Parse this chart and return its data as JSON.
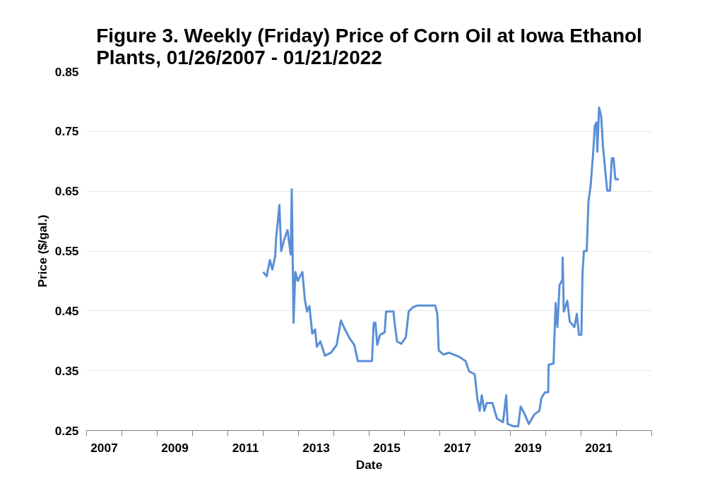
{
  "chart_data": {
    "type": "line",
    "title": "Figure 3. Weekly (Friday) Price of Corn Oil at Iowa Ethanol Plants, 01/26/2007 - 01/21/2022",
    "xlabel": "Date",
    "ylabel": "Price ($/gal.)",
    "x": [
      2012.0,
      2012.1,
      2012.19,
      2012.26,
      2012.34,
      2012.37,
      2012.41,
      2012.46,
      2012.51,
      2012.59,
      2012.69,
      2012.78,
      2012.81,
      2012.86,
      2012.91,
      2012.98,
      2013.11,
      2013.18,
      2013.24,
      2013.31,
      2013.39,
      2013.47,
      2013.52,
      2013.62,
      2013.75,
      2013.92,
      2014.08,
      2014.2,
      2014.3,
      2014.45,
      2014.58,
      2014.68,
      2014.98,
      2015.08,
      2015.13,
      2015.18,
      2015.23,
      2015.31,
      2015.44,
      2015.48,
      2015.69,
      2015.72,
      2015.79,
      2015.91,
      2016.04,
      2016.12,
      2016.24,
      2016.37,
      2016.64,
      2016.87,
      2016.93,
      2016.97,
      2017.1,
      2017.26,
      2017.56,
      2017.73,
      2017.83,
      2017.99,
      2018.06,
      2018.13,
      2018.19,
      2018.26,
      2018.33,
      2018.49,
      2018.62,
      2018.79,
      2018.88,
      2018.92,
      2019.09,
      2019.22,
      2019.29,
      2019.39,
      2019.52,
      2019.68,
      2019.82,
      2019.88,
      2019.98,
      2020.07,
      2020.08,
      2020.22,
      2020.28,
      2020.33,
      2020.39,
      2020.47,
      2020.48,
      2020.51,
      2020.61,
      2020.68,
      2020.81,
      2020.88,
      2020.94,
      2021.01,
      2021.04,
      2021.08,
      2021.16,
      2021.21,
      2021.27,
      2021.34,
      2021.39,
      2021.44,
      2021.46,
      2021.51,
      2021.57,
      2021.62,
      2021.69,
      2021.74,
      2021.82,
      2021.87,
      2021.92,
      2021.97,
      2022.07
    ],
    "series": [
      {
        "color": "#5a8fd7",
        "values": [
          0.515,
          0.508,
          0.535,
          0.519,
          0.541,
          0.574,
          0.596,
          0.627,
          0.55,
          0.568,
          0.585,
          0.544,
          0.653,
          0.43,
          0.515,
          0.5,
          0.515,
          0.469,
          0.449,
          0.458,
          0.412,
          0.419,
          0.39,
          0.399,
          0.375,
          0.38,
          0.393,
          0.434,
          0.421,
          0.404,
          0.393,
          0.366,
          0.366,
          0.366,
          0.43,
          0.43,
          0.393,
          0.41,
          0.414,
          0.449,
          0.449,
          0.43,
          0.399,
          0.395,
          0.406,
          0.449,
          0.456,
          0.459,
          0.459,
          0.459,
          0.445,
          0.384,
          0.377,
          0.38,
          0.373,
          0.366,
          0.349,
          0.344,
          0.305,
          0.283,
          0.309,
          0.283,
          0.296,
          0.296,
          0.27,
          0.264,
          0.309,
          0.261,
          0.257,
          0.257,
          0.29,
          0.279,
          0.261,
          0.277,
          0.283,
          0.305,
          0.314,
          0.314,
          0.36,
          0.362,
          0.463,
          0.423,
          0.493,
          0.502,
          0.539,
          0.449,
          0.467,
          0.432,
          0.423,
          0.445,
          0.41,
          0.41,
          0.511,
          0.55,
          0.55,
          0.633,
          0.659,
          0.712,
          0.76,
          0.765,
          0.716,
          0.79,
          0.775,
          0.725,
          0.681,
          0.651,
          0.651,
          0.705,
          0.705,
          0.67,
          0.67
        ]
      }
    ],
    "xlim": [
      2007,
      2023
    ],
    "xticks": [
      {
        "value": 2007,
        "label": null
      },
      {
        "value": 2007.5,
        "label": "2007"
      },
      {
        "value": 2008,
        "label": null
      },
      {
        "value": 2009,
        "label": null
      },
      {
        "value": 2009.5,
        "label": "2009"
      },
      {
        "value": 2010,
        "label": null
      },
      {
        "value": 2011,
        "label": null
      },
      {
        "value": 2011.5,
        "label": "2011"
      },
      {
        "value": 2012,
        "label": null
      },
      {
        "value": 2013,
        "label": null
      },
      {
        "value": 2013.5,
        "label": "2013"
      },
      {
        "value": 2014,
        "label": null
      },
      {
        "value": 2015,
        "label": null
      },
      {
        "value": 2015.5,
        "label": "2015"
      },
      {
        "value": 2016,
        "label": null
      },
      {
        "value": 2017,
        "label": null
      },
      {
        "value": 2017.5,
        "label": "2017"
      },
      {
        "value": 2018,
        "label": null
      },
      {
        "value": 2019,
        "label": null
      },
      {
        "value": 2019.5,
        "label": "2019"
      },
      {
        "value": 2020,
        "label": null
      },
      {
        "value": 2021,
        "label": null
      },
      {
        "value": 2021.5,
        "label": "2021"
      },
      {
        "value": 2022,
        "label": null
      },
      {
        "value": 2023,
        "label": null
      }
    ],
    "ylim": [
      0.25,
      0.85
    ],
    "yticks": [
      {
        "value": 0.25,
        "label": "0.25"
      },
      {
        "value": 0.35,
        "label": "0.35"
      },
      {
        "value": 0.45,
        "label": "0.45"
      },
      {
        "value": 0.55,
        "label": "0.55"
      },
      {
        "value": 0.65,
        "label": "0.65"
      },
      {
        "value": 0.75,
        "label": "0.75"
      },
      {
        "value": 0.85,
        "label": "0.85"
      }
    ],
    "grid": "y",
    "marker": "none",
    "line_style": "solid"
  }
}
